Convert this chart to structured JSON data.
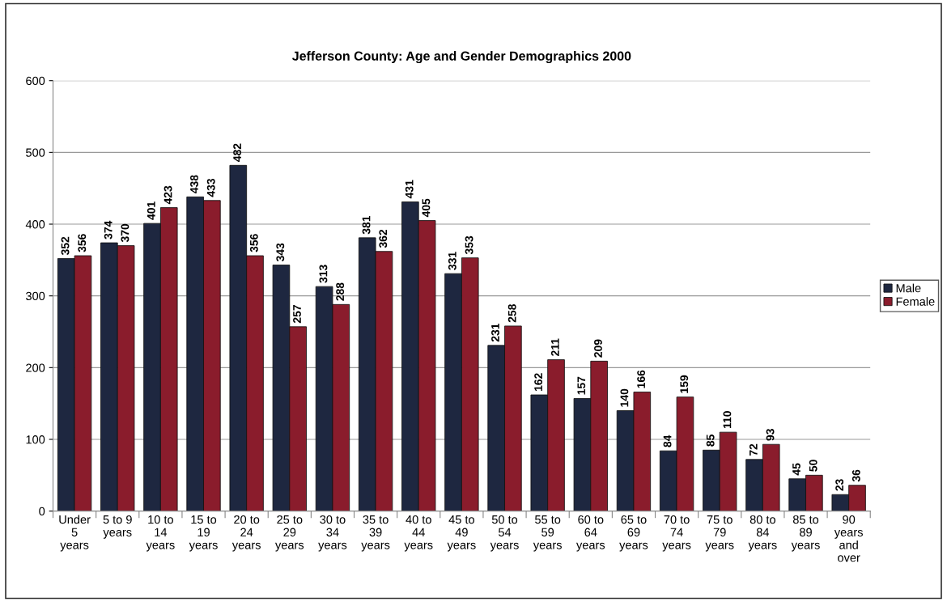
{
  "chart_data": {
    "type": "bar",
    "title": "Jefferson County: Age and Gender Demographics 2000",
    "categories": [
      "Under 5 years",
      "5 to 9 years",
      "10 to 14 years",
      "15 to 19 years",
      "20 to 24 years",
      "25 to 29 years",
      "30 to 34 years",
      "35 to 39 years",
      "40 to 44 years",
      "45 to 49 years",
      "50 to 54 years",
      "55 to 59 years",
      "60 to 64 years",
      "65 to 69 years",
      "70 to 74 years",
      "75 to 79 years",
      "80 to 84 years",
      "85 to 89 years",
      "90 years and over"
    ],
    "series": [
      {
        "name": "Male",
        "color": "#1e2740",
        "values": [
          352,
          374,
          401,
          438,
          482,
          343,
          313,
          381,
          431,
          331,
          231,
          162,
          157,
          140,
          84,
          85,
          72,
          45,
          23
        ]
      },
      {
        "name": "Female",
        "color": "#8a1c2c",
        "values": [
          356,
          370,
          423,
          433,
          356,
          257,
          288,
          362,
          405,
          353,
          258,
          211,
          209,
          166,
          159,
          110,
          93,
          50,
          36
        ]
      }
    ],
    "ylim": [
      0,
      600
    ],
    "yticks": [
      0,
      100,
      200,
      300,
      400,
      500,
      600
    ],
    "grid": "y",
    "legend": "right",
    "data_labels": true
  }
}
